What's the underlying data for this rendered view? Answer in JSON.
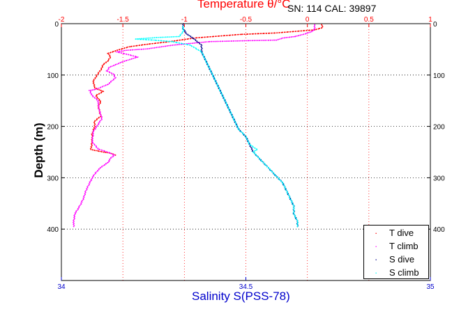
{
  "header": {
    "title": "Temperature θ/°C",
    "serial": "SN: 114  CAL: 39897"
  },
  "chart_data": {
    "type": "scatter",
    "ylabel": "Depth (m)",
    "ylim": [
      0,
      500
    ],
    "y_inverted": true,
    "y_ticks_left": [
      "0",
      "100",
      "200",
      "300",
      "400"
    ],
    "y_ticks_right": [
      "0",
      "100",
      "200",
      "300",
      "400"
    ],
    "x_top": {
      "label": "Temperature θ/°C",
      "lim": [
        -2,
        1
      ],
      "ticks": [
        "-2",
        "-1.5",
        "-1",
        "-0.5",
        "0",
        "0.5",
        "1"
      ],
      "color": "#ff0000"
    },
    "x_bottom": {
      "label": "Salinity S(PSS-78)",
      "lim": [
        34,
        35
      ],
      "ticks": [
        "34",
        "34.5",
        "35"
      ],
      "color": "#0000cc"
    },
    "grid": true,
    "legend_position": "bottom-right",
    "series": [
      {
        "name": "T dive",
        "axis": "top",
        "color": "#ff0000",
        "points": [
          [
            0.12,
            2
          ],
          [
            0.12,
            8
          ],
          [
            0.06,
            12
          ],
          [
            -0.25,
            18
          ],
          [
            -0.55,
            21
          ],
          [
            -0.92,
            28
          ],
          [
            -1.12,
            35
          ],
          [
            -1.3,
            40
          ],
          [
            -1.45,
            45
          ],
          [
            -1.55,
            52
          ],
          [
            -1.62,
            58
          ],
          [
            -1.6,
            65
          ],
          [
            -1.62,
            72
          ],
          [
            -1.66,
            80
          ],
          [
            -1.68,
            90
          ],
          [
            -1.71,
            100
          ],
          [
            -1.74,
            112
          ],
          [
            -1.73,
            125
          ],
          [
            -1.66,
            132
          ],
          [
            -1.72,
            140
          ],
          [
            -1.68,
            152
          ],
          [
            -1.7,
            160
          ],
          [
            -1.68,
            180
          ],
          [
            -1.73,
            190
          ],
          [
            -1.73,
            200
          ],
          [
            -1.75,
            215
          ],
          [
            -1.75,
            230
          ],
          [
            -1.76,
            245
          ],
          [
            -1.7,
            248
          ],
          [
            -1.66,
            250
          ],
          [
            -1.6,
            252
          ],
          [
            -1.56,
            256
          ]
        ]
      },
      {
        "name": "T climb",
        "axis": "top",
        "color": "#ff00ff",
        "points": [
          [
            -1.9,
            395
          ],
          [
            -1.9,
            385
          ],
          [
            -1.89,
            370
          ],
          [
            -1.85,
            355
          ],
          [
            -1.82,
            340
          ],
          [
            -1.8,
            325
          ],
          [
            -1.77,
            310
          ],
          [
            -1.75,
            300
          ],
          [
            -1.72,
            290
          ],
          [
            -1.68,
            280
          ],
          [
            -1.62,
            270
          ],
          [
            -1.6,
            262
          ],
          [
            -1.57,
            256
          ],
          [
            -1.6,
            252
          ],
          [
            -1.7,
            244
          ],
          [
            -1.75,
            230
          ],
          [
            -1.74,
            210
          ],
          [
            -1.7,
            195
          ],
          [
            -1.67,
            185
          ],
          [
            -1.69,
            170
          ],
          [
            -1.7,
            160
          ],
          [
            -1.7,
            150
          ],
          [
            -1.75,
            140
          ],
          [
            -1.77,
            130
          ],
          [
            -1.72,
            128
          ],
          [
            -1.62,
            118
          ],
          [
            -1.56,
            105
          ],
          [
            -1.58,
            98
          ],
          [
            -1.63,
            92
          ],
          [
            -1.61,
            85
          ],
          [
            -1.5,
            74
          ],
          [
            -1.38,
            65
          ],
          [
            -1.46,
            60
          ],
          [
            -1.55,
            55
          ],
          [
            -1.48,
            52
          ],
          [
            -1.3,
            49
          ],
          [
            -1.1,
            42
          ],
          [
            -0.8,
            35
          ],
          [
            -0.47,
            33
          ],
          [
            -0.25,
            32
          ],
          [
            -0.2,
            28
          ],
          [
            -0.1,
            25
          ],
          [
            -0.02,
            20
          ],
          [
            0.04,
            15
          ],
          [
            0.06,
            10
          ],
          [
            0.06,
            2
          ]
        ]
      },
      {
        "name": "S dive",
        "axis": "bottom",
        "color": "#00008b",
        "points": [
          [
            34.33,
            0
          ],
          [
            34.33,
            10
          ],
          [
            34.34,
            20
          ],
          [
            34.36,
            30
          ],
          [
            34.38,
            42
          ],
          [
            34.38,
            55
          ],
          [
            34.39,
            70
          ],
          [
            34.4,
            85
          ],
          [
            34.41,
            100
          ],
          [
            34.42,
            115
          ],
          [
            34.43,
            130
          ],
          [
            34.44,
            145
          ],
          [
            34.45,
            160
          ],
          [
            34.46,
            175
          ],
          [
            34.47,
            190
          ],
          [
            34.48,
            205
          ],
          [
            34.5,
            220
          ],
          [
            34.51,
            235
          ],
          [
            34.52,
            250
          ],
          [
            34.54,
            265
          ],
          [
            34.56,
            280
          ],
          [
            34.58,
            295
          ],
          [
            34.6,
            310
          ],
          [
            34.61,
            325
          ],
          [
            34.62,
            340
          ],
          [
            34.63,
            355
          ],
          [
            34.63,
            370
          ],
          [
            34.64,
            385
          ],
          [
            34.64,
            395
          ]
        ]
      },
      {
        "name": "S climb",
        "axis": "bottom",
        "color": "#00ffff",
        "points": [
          [
            34.64,
            395
          ],
          [
            34.64,
            385
          ],
          [
            34.63,
            370
          ],
          [
            34.63,
            355
          ],
          [
            34.62,
            340
          ],
          [
            34.61,
            325
          ],
          [
            34.6,
            310
          ],
          [
            34.58,
            295
          ],
          [
            34.56,
            280
          ],
          [
            34.54,
            265
          ],
          [
            34.52,
            250
          ],
          [
            34.53,
            245
          ],
          [
            34.51,
            235
          ],
          [
            34.5,
            220
          ],
          [
            34.48,
            205
          ],
          [
            34.47,
            190
          ],
          [
            34.46,
            175
          ],
          [
            34.45,
            160
          ],
          [
            34.44,
            145
          ],
          [
            34.43,
            130
          ],
          [
            34.42,
            115
          ],
          [
            34.41,
            100
          ],
          [
            34.4,
            85
          ],
          [
            34.39,
            70
          ],
          [
            34.38,
            55
          ],
          [
            34.35,
            42
          ],
          [
            34.3,
            35
          ],
          [
            34.25,
            32
          ],
          [
            34.2,
            30
          ],
          [
            34.26,
            27
          ],
          [
            34.32,
            25
          ],
          [
            34.33,
            15
          ],
          [
            34.33,
            5
          ]
        ]
      }
    ]
  }
}
